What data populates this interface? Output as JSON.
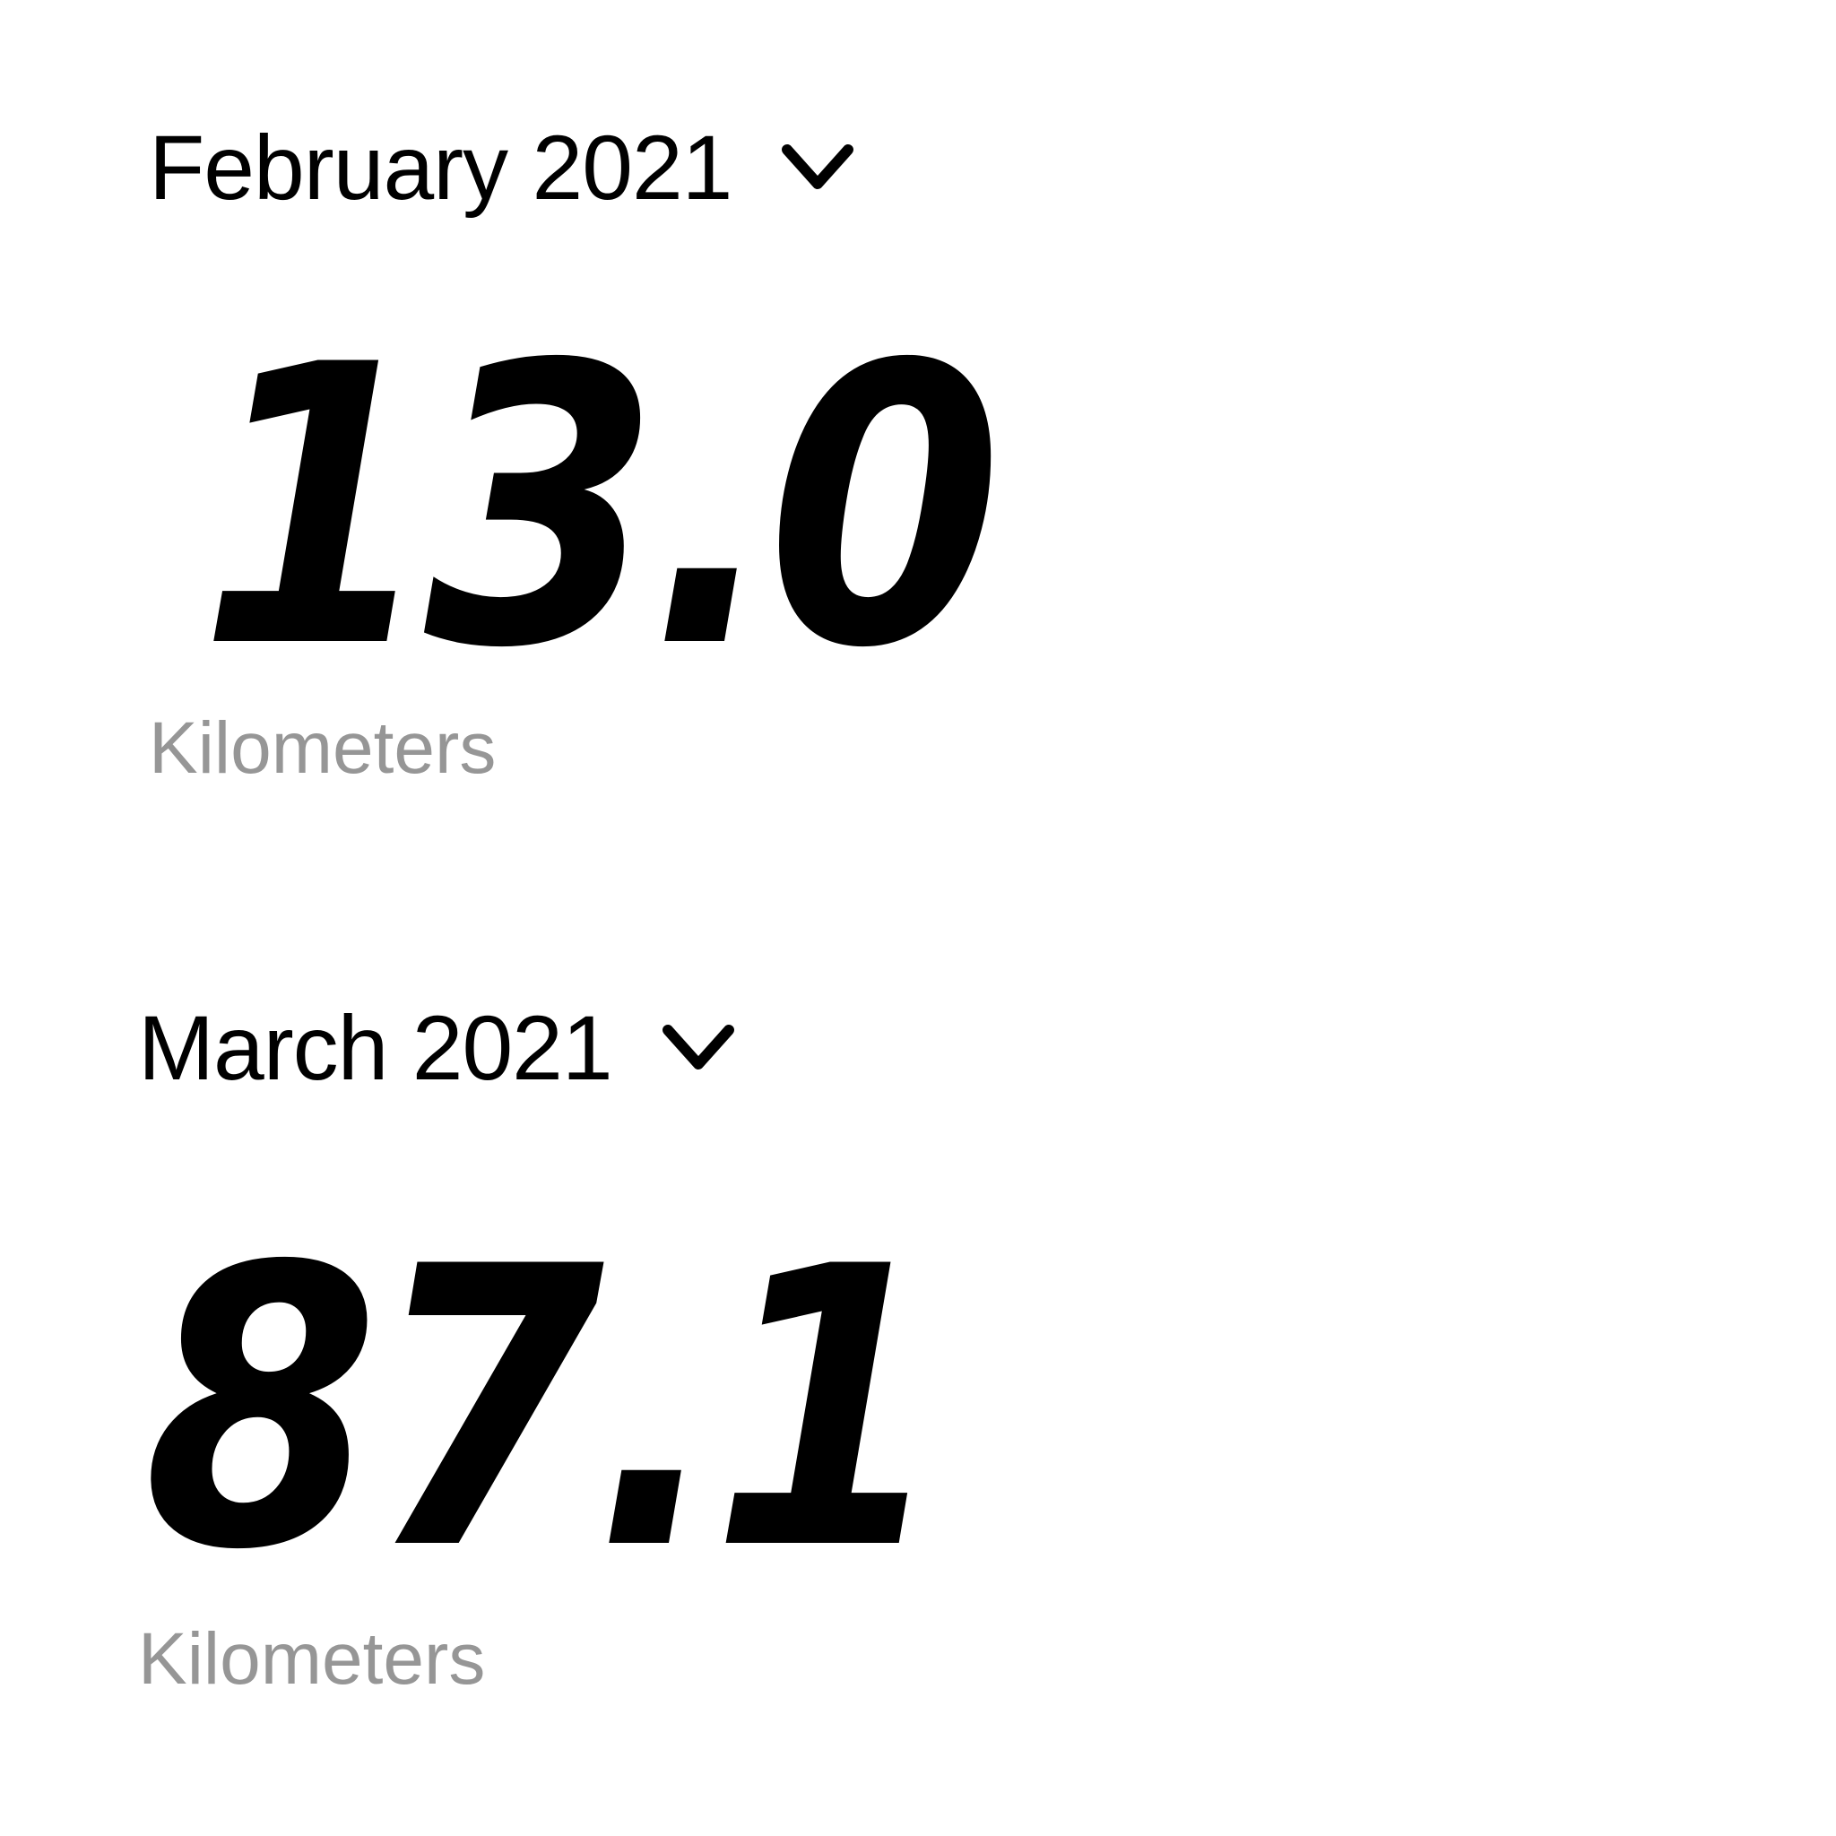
{
  "months": [
    {
      "period_label": "February 2021",
      "distance_value": "13.0",
      "unit_label": "Kilometers",
      "chevron_icon": "chevron-down-icon"
    },
    {
      "period_label": "March 2021",
      "distance_value": "87.1",
      "unit_label": "Kilometers",
      "chevron_icon": "chevron-down-icon"
    }
  ],
  "colors": {
    "background": "#ffffff",
    "primary_text": "#000000",
    "secondary_text": "#969696"
  }
}
